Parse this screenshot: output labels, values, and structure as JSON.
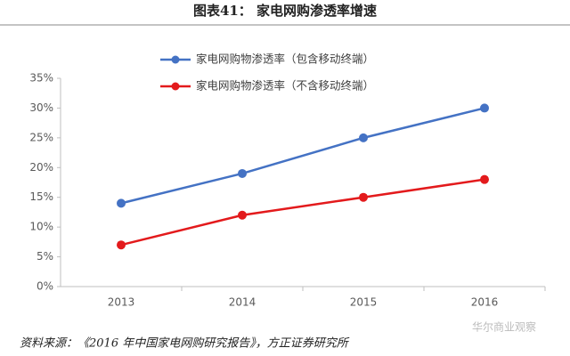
{
  "chart_data": {
    "type": "line",
    "title": "图表41：  家电网购渗透率增速",
    "categories": [
      "2013",
      "2014",
      "2015",
      "2016"
    ],
    "series": [
      {
        "name": "家电网购物渗透率（包含移动终端）",
        "color": "#4472c4",
        "values": [
          14,
          19,
          25,
          30
        ]
      },
      {
        "name": "家电网购物渗透率（不含移动终端）",
        "color": "#e31a1c",
        "values": [
          7,
          12,
          15,
          18
        ]
      }
    ],
    "ylim": [
      0,
      35
    ],
    "yticks": [
      {
        "value": 0,
        "label": "0%"
      },
      {
        "value": 5,
        "label": "5%"
      },
      {
        "value": 10,
        "label": "10%"
      },
      {
        "value": 15,
        "label": "15%"
      },
      {
        "value": 20,
        "label": "20%"
      },
      {
        "value": 25,
        "label": "25%"
      },
      {
        "value": 30,
        "label": "30%"
      },
      {
        "value": 35,
        "label": "35%"
      }
    ],
    "legend": "top",
    "source": "资料来源：《2016 年中国家电网购研究报告》，方正证券研究所",
    "watermark": "华尔商业观察"
  }
}
